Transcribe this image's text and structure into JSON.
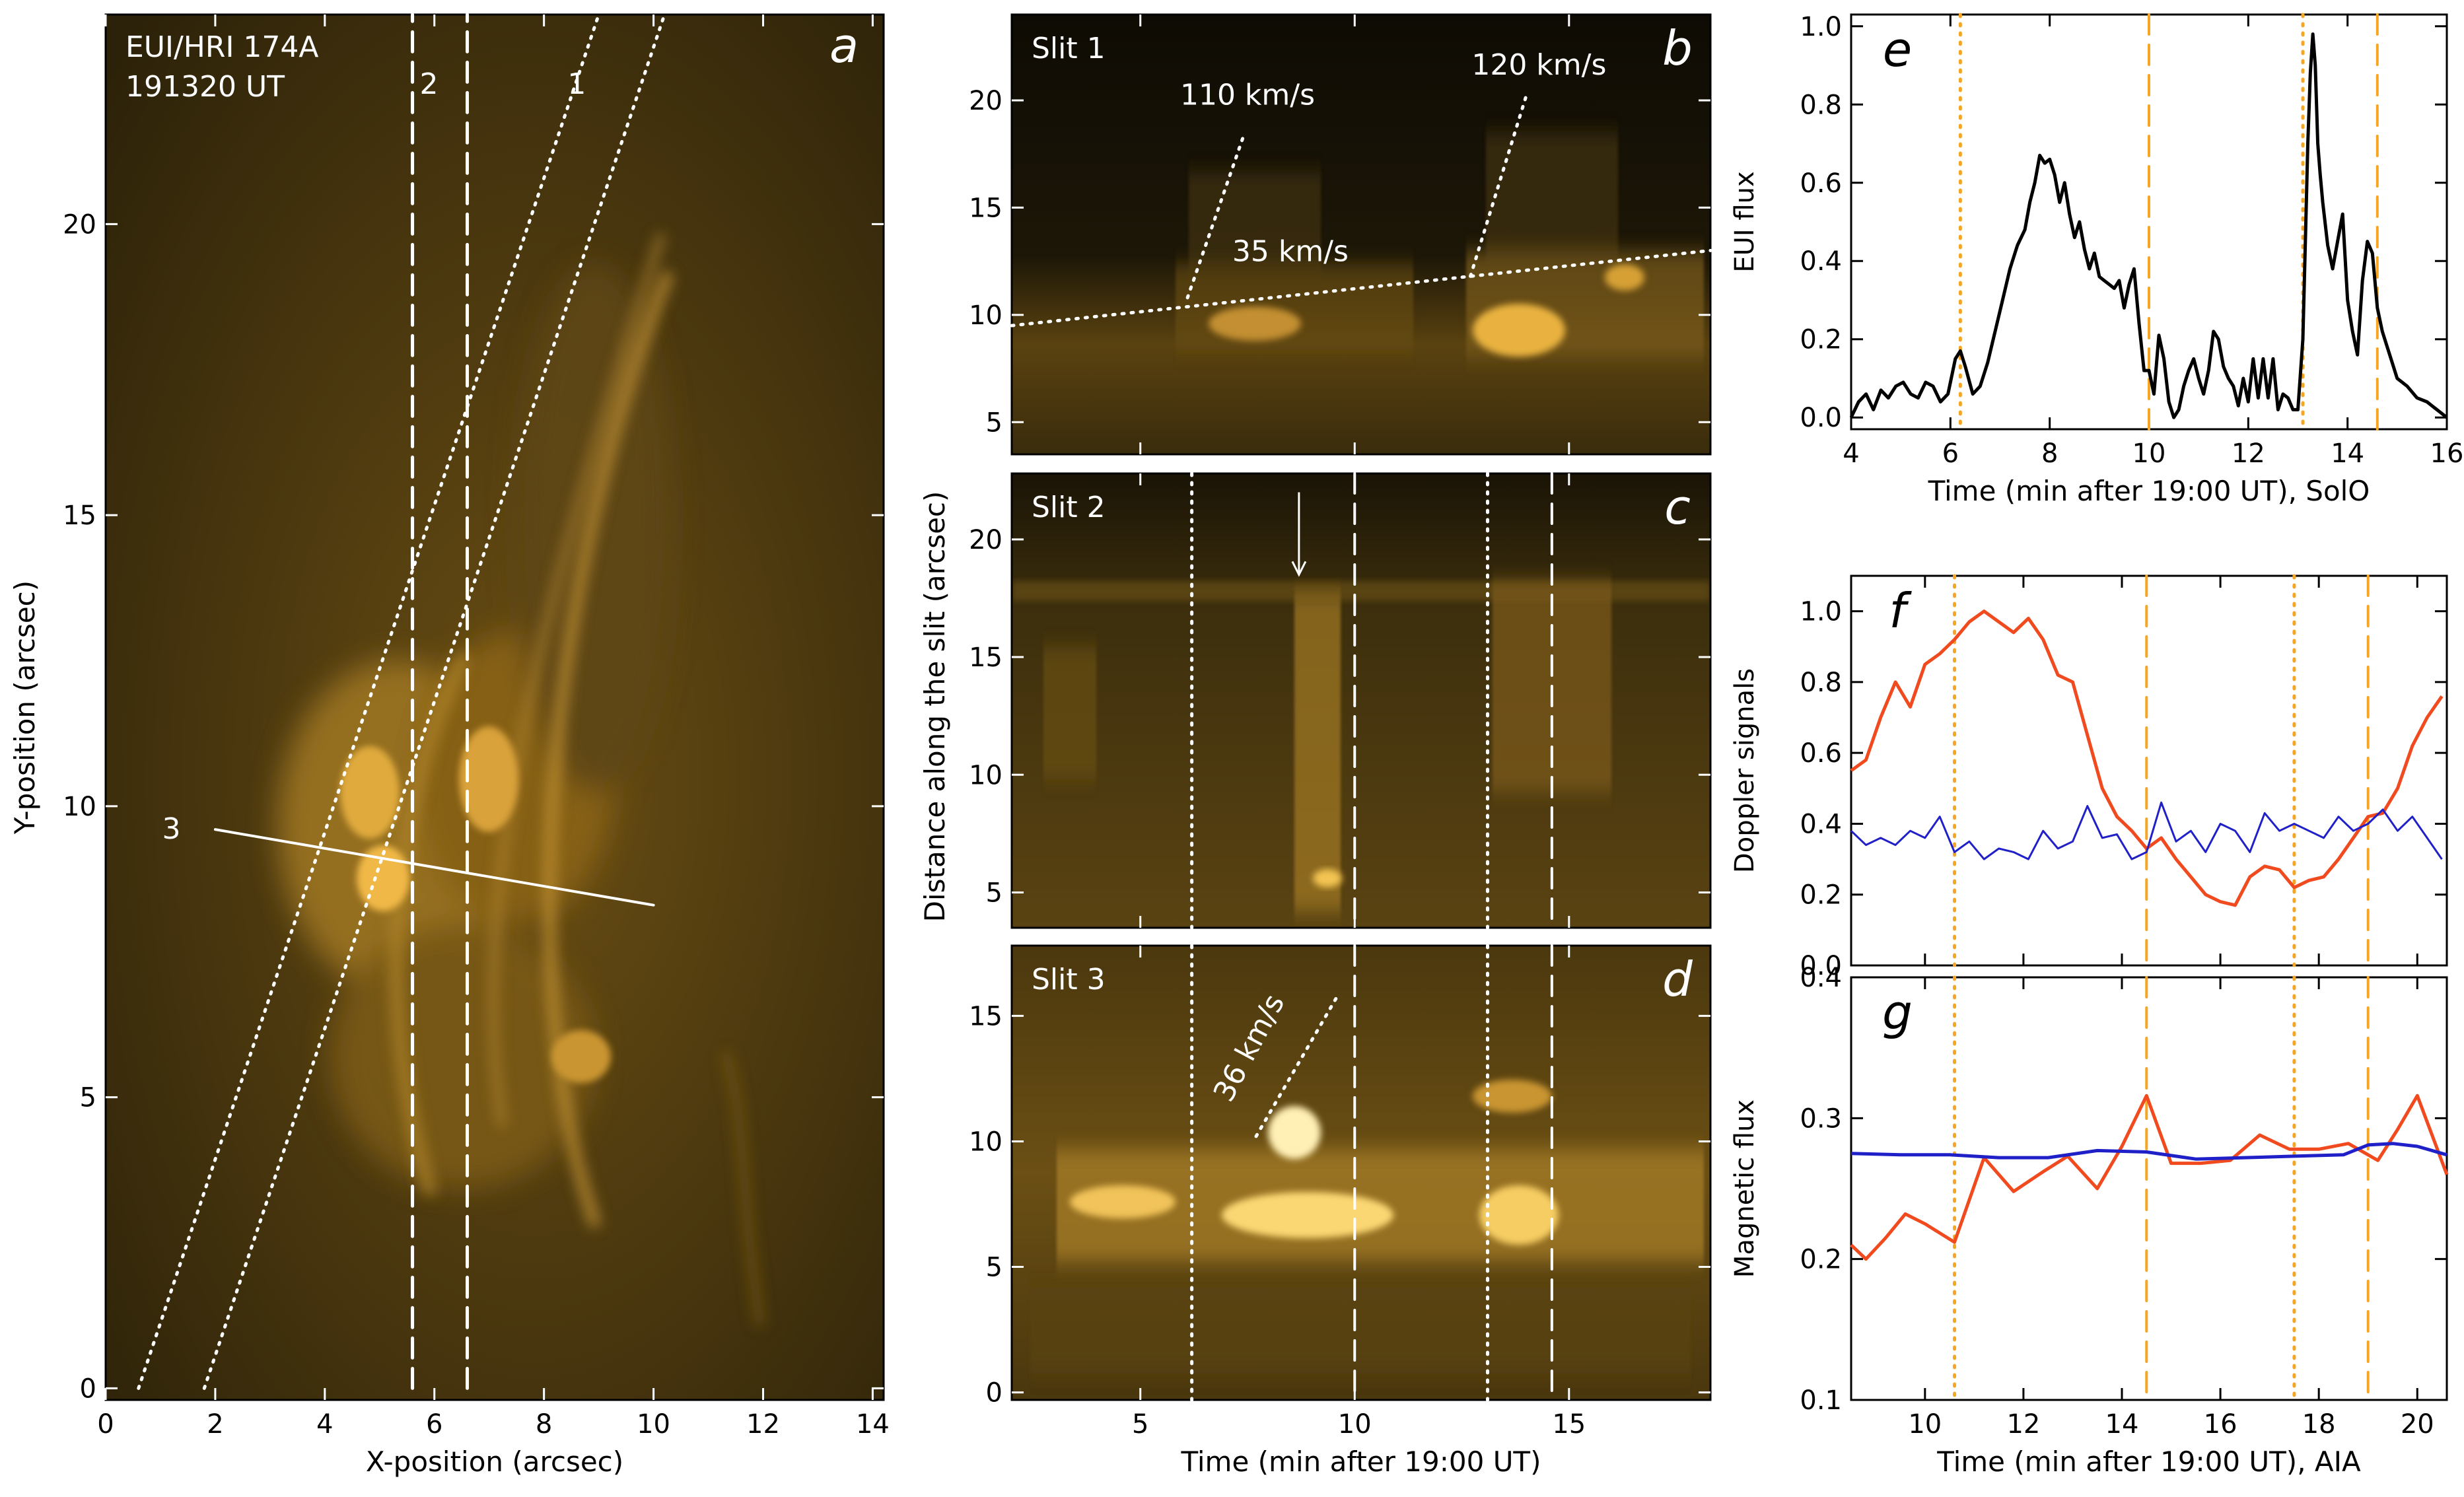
{
  "chart_data": [
    {
      "panel": "a",
      "type": "image",
      "title": "",
      "overlay_text": [
        "EUI/HRI 174A",
        "191320 UT"
      ],
      "panel_letter": "a",
      "xlabel": "X-position (arcsec)",
      "ylabel": "Y-position (arcsec)",
      "xlim": [
        0,
        14.2
      ],
      "ylim": [
        -0.2,
        23.6
      ],
      "xticks": [
        0,
        2,
        4,
        6,
        8,
        10,
        12,
        14
      ],
      "yticks": [
        0,
        5,
        10,
        15,
        20
      ],
      "slit_labels": [
        {
          "text": "1",
          "x": 8.6,
          "y": 22.4
        },
        {
          "text": "2",
          "x": 5.9,
          "y": 22.4
        },
        {
          "text": "3",
          "x": 1.2,
          "y": 9.6
        }
      ],
      "slits": [
        {
          "name": "slit-1-left",
          "style": "dotted",
          "x1": 0.6,
          "y1": 0,
          "x2": 9.0,
          "y2": 23.6
        },
        {
          "name": "slit-1-right",
          "style": "dotted",
          "x1": 1.8,
          "y1": 0,
          "x2": 10.2,
          "y2": 23.6
        },
        {
          "name": "slit-2-left",
          "style": "dashed",
          "x1": 5.6,
          "y1": 0,
          "x2": 5.6,
          "y2": 23.6
        },
        {
          "name": "slit-2-right",
          "style": "dashed",
          "x1": 6.6,
          "y1": 0,
          "x2": 6.6,
          "y2": 23.6
        },
        {
          "name": "slit-3",
          "style": "solid",
          "x1": 2.0,
          "y1": 9.6,
          "x2": 10.0,
          "y2": 8.3
        }
      ]
    },
    {
      "panel": "b",
      "type": "image",
      "title": "Slit 1",
      "panel_letter": "b",
      "xlim": [
        2,
        18.3
      ],
      "ylim": [
        3.5,
        24
      ],
      "yticks": [
        5,
        10,
        15,
        20
      ],
      "annotations": [
        {
          "text": "110 km/s",
          "x": 7.5,
          "y": 19.8
        },
        {
          "text": "120 km/s",
          "x": 14.3,
          "y": 21.2
        },
        {
          "text": "35 km/s",
          "x": 8.5,
          "y": 12.5
        }
      ],
      "fits": [
        {
          "name": "fit-35-kms",
          "x1": 2.0,
          "y1": 9.5,
          "x2": 18.3,
          "y2": 13.0
        },
        {
          "name": "fit-110-kms",
          "x1": 6.1,
          "y1": 10.8,
          "x2": 7.4,
          "y2": 18.3
        },
        {
          "name": "fit-120-kms",
          "x1": 12.7,
          "y1": 11.8,
          "x2": 14.0,
          "y2": 20.2
        }
      ]
    },
    {
      "panel": "c",
      "type": "image",
      "title": "Slit 2",
      "panel_letter": "c",
      "xlim": [
        2,
        18.3
      ],
      "ylim": [
        3.5,
        22.8
      ],
      "yticks": [
        5,
        10,
        15,
        20
      ],
      "arrow": {
        "x": 8.7,
        "y_from": 22,
        "y_to": 18.5
      },
      "vlines": [
        {
          "style": "dotted",
          "x": 6.2
        },
        {
          "style": "dashed",
          "x": 10.0
        },
        {
          "style": "dotted",
          "x": 13.1
        },
        {
          "style": "dashed",
          "x": 14.6
        }
      ]
    },
    {
      "panel": "d",
      "type": "image",
      "title": "Slit 3",
      "panel_letter": "d",
      "xlabel": "Time (min after 19:00 UT)",
      "ylabel": "Distance along the slit (arcsec)",
      "xlim": [
        2,
        18.3
      ],
      "ylim": [
        -0.3,
        17.8
      ],
      "xticks": [
        5,
        10,
        15
      ],
      "yticks": [
        0,
        5,
        10,
        15
      ],
      "annotations": [
        {
          "text": "36 km/s",
          "x": 7.1,
          "y": 11.5
        }
      ],
      "fits": [
        {
          "name": "fit-36-kms",
          "x1": 7.7,
          "y1": 10.2,
          "x2": 9.6,
          "y2": 15.8
        }
      ],
      "vlines": [
        {
          "style": "dotted",
          "x": 6.2
        },
        {
          "style": "dashed",
          "x": 10.0
        },
        {
          "style": "dotted",
          "x": 13.1
        },
        {
          "style": "dashed",
          "x": 14.6
        }
      ]
    },
    {
      "panel": "e",
      "type": "line",
      "panel_letter": "e",
      "xlabel": "Time (min after 19:00 UT), SolO",
      "ylabel": "EUI flux",
      "xlim": [
        4,
        16
      ],
      "ylim": [
        -0.03,
        1.03
      ],
      "xticks": [
        4,
        6,
        8,
        10,
        12,
        14,
        16
      ],
      "yticks": [
        0.0,
        0.2,
        0.4,
        0.6,
        0.8,
        1.0
      ],
      "ytick_labels": [
        "0.0",
        "0.2",
        "0.4",
        "0.6",
        "0.8",
        "1.0"
      ],
      "vlines": [
        {
          "style": "dotted",
          "x": 6.2
        },
        {
          "style": "dashed",
          "x": 10.0
        },
        {
          "style": "dotted",
          "x": 13.1
        },
        {
          "style": "dashed",
          "x": 14.6
        }
      ],
      "series": [
        {
          "name": "EUI flux",
          "color": "#000000",
          "x": [
            4.0,
            4.15,
            4.3,
            4.45,
            4.6,
            4.75,
            4.9,
            5.05,
            5.2,
            5.35,
            5.5,
            5.65,
            5.8,
            5.95,
            6.1,
            6.2,
            6.3,
            6.45,
            6.6,
            6.75,
            6.9,
            7.05,
            7.2,
            7.35,
            7.5,
            7.6,
            7.7,
            7.8,
            7.9,
            8.0,
            8.1,
            8.2,
            8.3,
            8.4,
            8.5,
            8.6,
            8.7,
            8.8,
            8.9,
            9.0,
            9.1,
            9.2,
            9.3,
            9.4,
            9.5,
            9.6,
            9.7,
            9.8,
            9.9,
            10.0,
            10.1,
            10.2,
            10.3,
            10.4,
            10.5,
            10.6,
            10.7,
            10.8,
            10.9,
            11.0,
            11.1,
            11.2,
            11.3,
            11.4,
            11.5,
            11.6,
            11.7,
            11.8,
            11.9,
            12.0,
            12.1,
            12.2,
            12.3,
            12.4,
            12.5,
            12.6,
            12.7,
            12.8,
            12.9,
            13.0,
            13.1,
            13.15,
            13.2,
            13.25,
            13.3,
            13.35,
            13.4,
            13.45,
            13.5,
            13.6,
            13.7,
            13.8,
            13.9,
            14.0,
            14.1,
            14.2,
            14.3,
            14.4,
            14.5,
            14.6,
            14.7,
            14.8,
            14.9,
            15.0,
            15.2,
            15.4,
            15.6,
            15.8,
            16.0
          ],
          "y": [
            0.0,
            0.04,
            0.06,
            0.02,
            0.07,
            0.05,
            0.08,
            0.09,
            0.06,
            0.05,
            0.09,
            0.08,
            0.04,
            0.06,
            0.15,
            0.17,
            0.13,
            0.06,
            0.08,
            0.14,
            0.22,
            0.3,
            0.38,
            0.44,
            0.48,
            0.55,
            0.6,
            0.67,
            0.65,
            0.66,
            0.62,
            0.55,
            0.6,
            0.52,
            0.46,
            0.5,
            0.43,
            0.38,
            0.42,
            0.36,
            0.35,
            0.34,
            0.33,
            0.35,
            0.28,
            0.34,
            0.38,
            0.24,
            0.12,
            0.12,
            0.06,
            0.21,
            0.15,
            0.04,
            0.0,
            0.02,
            0.08,
            0.12,
            0.15,
            0.1,
            0.06,
            0.12,
            0.22,
            0.2,
            0.13,
            0.1,
            0.08,
            0.03,
            0.1,
            0.04,
            0.15,
            0.05,
            0.15,
            0.05,
            0.15,
            0.02,
            0.06,
            0.05,
            0.02,
            0.02,
            0.2,
            0.45,
            0.7,
            0.88,
            0.98,
            0.9,
            0.7,
            0.62,
            0.55,
            0.44,
            0.38,
            0.45,
            0.52,
            0.3,
            0.22,
            0.16,
            0.35,
            0.45,
            0.42,
            0.28,
            0.22,
            0.18,
            0.14,
            0.1,
            0.08,
            0.05,
            0.04,
            0.02,
            0.0
          ]
        }
      ]
    },
    {
      "panel": "f",
      "type": "line",
      "panel_letter": "f",
      "ylabel": "Doppler signals",
      "xlim": [
        8.5,
        20.6
      ],
      "ylim": [
        0.0,
        1.1
      ],
      "xticks": [
        10,
        12,
        14,
        16,
        18,
        20
      ],
      "yticks": [
        0.0,
        0.2,
        0.4,
        0.6,
        0.8,
        1.0
      ],
      "ytick_labels": [
        "0.0",
        "0.2",
        "0.4",
        "0.6",
        "0.8",
        "1.0"
      ],
      "vlines": [
        {
          "style": "dotted",
          "x": 10.6
        },
        {
          "style": "dashed",
          "x": 14.5
        },
        {
          "style": "dotted",
          "x": 17.5
        },
        {
          "style": "dashed",
          "x": 19.0
        }
      ],
      "series": [
        {
          "name": "red",
          "color": "#f04a1e",
          "x": [
            8.5,
            8.8,
            9.1,
            9.4,
            9.7,
            10.0,
            10.3,
            10.6,
            10.9,
            11.2,
            11.5,
            11.8,
            12.1,
            12.4,
            12.7,
            13.0,
            13.3,
            13.6,
            13.9,
            14.2,
            14.5,
            14.8,
            15.1,
            15.4,
            15.7,
            16.0,
            16.3,
            16.6,
            16.9,
            17.2,
            17.5,
            17.8,
            18.1,
            18.4,
            18.7,
            19.0,
            19.3,
            19.6,
            19.9,
            20.2,
            20.5
          ],
          "y": [
            0.55,
            0.58,
            0.7,
            0.8,
            0.73,
            0.85,
            0.88,
            0.92,
            0.97,
            1.0,
            0.97,
            0.94,
            0.98,
            0.92,
            0.82,
            0.8,
            0.65,
            0.5,
            0.42,
            0.38,
            0.33,
            0.36,
            0.3,
            0.25,
            0.2,
            0.18,
            0.17,
            0.25,
            0.28,
            0.27,
            0.22,
            0.24,
            0.25,
            0.3,
            0.36,
            0.42,
            0.43,
            0.5,
            0.62,
            0.7,
            0.76
          ]
        },
        {
          "name": "blue",
          "color": "#2020c8",
          "x": [
            8.5,
            8.8,
            9.1,
            9.4,
            9.7,
            10.0,
            10.3,
            10.6,
            10.9,
            11.2,
            11.5,
            11.8,
            12.1,
            12.4,
            12.7,
            13.0,
            13.3,
            13.6,
            13.9,
            14.2,
            14.5,
            14.8,
            15.1,
            15.4,
            15.7,
            16.0,
            16.3,
            16.6,
            16.9,
            17.2,
            17.5,
            17.8,
            18.1,
            18.4,
            18.7,
            19.0,
            19.3,
            19.6,
            19.9,
            20.2,
            20.5
          ],
          "y": [
            0.38,
            0.34,
            0.36,
            0.34,
            0.38,
            0.36,
            0.42,
            0.32,
            0.35,
            0.3,
            0.33,
            0.32,
            0.3,
            0.38,
            0.33,
            0.35,
            0.45,
            0.36,
            0.37,
            0.3,
            0.32,
            0.46,
            0.35,
            0.38,
            0.32,
            0.4,
            0.38,
            0.32,
            0.43,
            0.38,
            0.4,
            0.38,
            0.36,
            0.42,
            0.38,
            0.4,
            0.44,
            0.38,
            0.42,
            0.36,
            0.3
          ]
        }
      ]
    },
    {
      "panel": "g",
      "type": "line",
      "panel_letter": "g",
      "xlabel": "Time (min after 19:00 UT), AIA",
      "ylabel": "Magnetic flux",
      "xlim": [
        8.5,
        20.6
      ],
      "ylim": [
        0.1,
        0.4
      ],
      "xticks": [
        10,
        12,
        14,
        16,
        18,
        20
      ],
      "yticks": [
        0.1,
        0.2,
        0.3,
        0.4
      ],
      "ytick_labels": [
        "0.1",
        "0.2",
        "0.3",
        "0.4"
      ],
      "vlines": [
        {
          "style": "dotted",
          "x": 10.6
        },
        {
          "style": "dashed",
          "x": 14.5
        },
        {
          "style": "dotted",
          "x": 17.5
        },
        {
          "style": "dashed",
          "x": 19.0
        }
      ],
      "series": [
        {
          "name": "red",
          "color": "#f04a1e",
          "x": [
            8.5,
            8.8,
            9.2,
            9.6,
            10.0,
            10.6,
            11.2,
            11.8,
            12.4,
            12.9,
            13.5,
            14.0,
            14.5,
            15.0,
            15.6,
            16.2,
            16.8,
            17.4,
            18.0,
            18.6,
            19.2,
            19.6,
            20.0,
            20.6
          ],
          "y": [
            0.21,
            0.2,
            0.215,
            0.232,
            0.225,
            0.212,
            0.272,
            0.248,
            0.262,
            0.273,
            0.25,
            0.28,
            0.316,
            0.268,
            0.268,
            0.27,
            0.288,
            0.278,
            0.278,
            0.282,
            0.27,
            0.292,
            0.316,
            0.26
          ]
        },
        {
          "name": "blue",
          "color": "#2020c8",
          "x": [
            8.5,
            9.5,
            10.5,
            11.5,
            12.5,
            13.5,
            14.5,
            15.5,
            16.5,
            17.5,
            18.5,
            19.0,
            19.5,
            20.0,
            20.6
          ],
          "y": [
            0.275,
            0.274,
            0.274,
            0.272,
            0.272,
            0.277,
            0.276,
            0.271,
            0.272,
            0.273,
            0.274,
            0.281,
            0.282,
            0.28,
            0.274
          ]
        }
      ]
    }
  ]
}
